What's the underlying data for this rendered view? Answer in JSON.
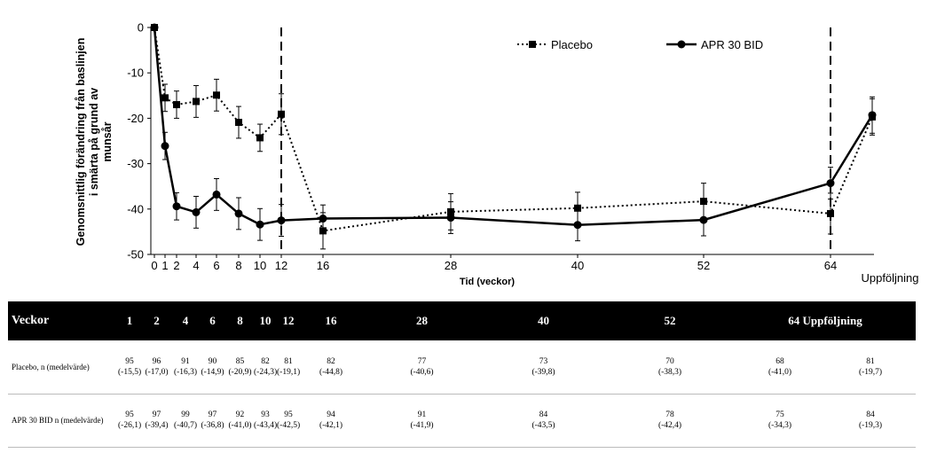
{
  "chart_data": {
    "type": "line",
    "xlabel": "Tid (veckor)",
    "ylabel": "Genomsnittlig förändring från baslinjen i smärta på grund av munsår",
    "ylim": [
      -50,
      0
    ],
    "yticks": [
      "0",
      "-10",
      "-20",
      "-30",
      "-40",
      "-50"
    ],
    "xticks": [
      "0",
      "1",
      "2",
      "4",
      "6",
      "8",
      "10",
      "12",
      "16",
      "28",
      "40",
      "52",
      "64",
      "Uppföljning"
    ],
    "x": [
      "0",
      "1",
      "2",
      "4",
      "6",
      "8",
      "10",
      "12",
      "16",
      "28",
      "40",
      "52",
      "64",
      "Uppföljning"
    ],
    "dashed_vertical_lines_at": [
      "12",
      "64"
    ],
    "grid": false,
    "legend_position": "top-right",
    "series": [
      {
        "name": "Placebo",
        "style": "dotted",
        "marker": "square",
        "color": "#000000",
        "values": [
          0,
          -15.5,
          -17.0,
          -16.3,
          -14.9,
          -20.9,
          -24.3,
          -19.1,
          -44.8,
          -40.6,
          -39.8,
          -38.3,
          -41.0,
          -19.7
        ],
        "error": [
          0,
          3,
          3,
          3.5,
          3.5,
          3.5,
          3,
          4.5,
          4,
          4,
          3.5,
          4,
          4.5,
          4
        ]
      },
      {
        "name": "APR 30 BID",
        "style": "solid",
        "marker": "circle",
        "color": "#000000",
        "values": [
          0,
          -26.1,
          -39.4,
          -40.7,
          -36.8,
          -41.0,
          -43.4,
          -42.5,
          -42.1,
          -41.9,
          -43.5,
          -42.4,
          -34.3,
          -19.3
        ],
        "error": [
          0,
          3,
          3,
          3.5,
          3.5,
          3.5,
          3.5,
          3.5,
          3,
          3.5,
          3.5,
          3.5,
          3.5,
          4
        ]
      }
    ]
  },
  "table": {
    "header_label": "Veckor",
    "header_weeks": [
      "1",
      "2",
      "4",
      "6",
      "8",
      "10",
      "12",
      "16",
      "28",
      "40",
      "52",
      "64",
      "Uppföljning"
    ],
    "rows": [
      {
        "label": "Placebo, n (medelvärde)",
        "n": [
          "95",
          "96",
          "91",
          "90",
          "85",
          "82",
          "81",
          "82",
          "77",
          "73",
          "70",
          "68",
          "81"
        ],
        "mean": [
          "(-15,5)",
          "(-17,0)",
          "(-16,3)",
          "(-14,9)",
          "(-20,9)",
          "(-24,3)",
          "(-19,1)",
          "(-44,8)",
          "(-40,6)",
          "(-39,8)",
          "(-38,3)",
          "(-41,0)",
          "(-19,7)"
        ]
      },
      {
        "label": "APR 30 BID n (medelvärde)",
        "n": [
          "95",
          "97",
          "99",
          "97",
          "92",
          "93",
          "95",
          "94",
          "91",
          "84",
          "78",
          "75",
          "84"
        ],
        "mean": [
          "(-26,1)",
          "(-39,4)",
          "(-40,7)",
          "(-36,8)",
          "(-41,0)",
          "(-43,4)",
          "(-42,5)",
          "(-42,1)",
          "(-41,9)",
          "(-43,5)",
          "(-42,4)",
          "(-34,3)",
          "(-19,3)"
        ]
      }
    ]
  }
}
